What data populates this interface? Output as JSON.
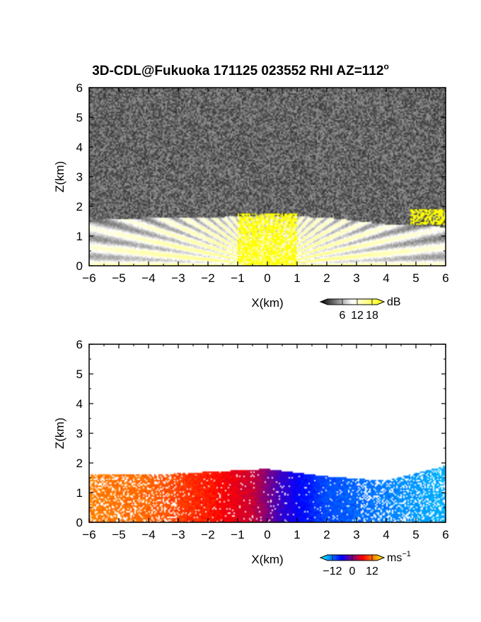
{
  "title": "3D-CDL@Fukuoka 171125 023552 RHI AZ=112",
  "title_superscript": "o",
  "chart_data": [
    {
      "type": "heatmap",
      "name_of_panel": "reflectivity",
      "xlabel": "X(km)",
      "ylabel": "Z(km)",
      "xlim": [
        -6,
        6
      ],
      "ylim": [
        0,
        6
      ],
      "x_ticks": [
        "-6",
        "-5",
        "-4",
        "-3",
        "-2",
        "-1",
        "0",
        "1",
        "2",
        "3",
        "4",
        "5",
        "6"
      ],
      "y_ticks": [
        "0",
        "1",
        "2",
        "3",
        "4",
        "5",
        "6"
      ],
      "colorbar": {
        "unit": "dB",
        "ticks": [
          "6",
          "12",
          "18"
        ],
        "range": [
          0,
          20
        ],
        "colors": [
          "#000000",
          "#ffffff",
          "#ffff00"
        ]
      },
      "noise_floor_top_km": 6,
      "boundary_layer_top_km": [
        [
          -6,
          1.55
        ],
        [
          -4,
          1.6
        ],
        [
          -2,
          1.62
        ],
        [
          0,
          1.7
        ],
        [
          2,
          1.62
        ],
        [
          4,
          1.4
        ],
        [
          6,
          1.3
        ]
      ],
      "strong_echo_regions": [
        {
          "x_range": [
            -1.0,
            1.0
          ],
          "z_range": [
            0,
            1.75
          ],
          "value_db": 20
        },
        {
          "x_range": [
            4.8,
            6.0
          ],
          "z_range": [
            1.4,
            1.9
          ],
          "value_db": 20
        }
      ]
    },
    {
      "type": "heatmap",
      "name_of_panel": "doppler_velocity",
      "xlabel": "X(km)",
      "ylabel": "Z(km)",
      "xlim": [
        -6,
        6
      ],
      "ylim": [
        0,
        6
      ],
      "x_ticks": [
        "-6",
        "-5",
        "-4",
        "-3",
        "-2",
        "-1",
        "0",
        "1",
        "2",
        "3",
        "4",
        "5",
        "6"
      ],
      "y_ticks": [
        "0",
        "1",
        "2",
        "3",
        "4",
        "5",
        "6"
      ],
      "colorbar": {
        "unit": "ms",
        "unit_superscript": "-1",
        "ticks": [
          "-12",
          "0",
          "12"
        ],
        "range": [
          -15,
          15
        ],
        "colors": [
          "#00ffff",
          "#0000ff",
          "#ff0000",
          "#ffff00"
        ]
      },
      "data_top_km": [
        [
          -6,
          1.6
        ],
        [
          -4,
          1.6
        ],
        [
          -2,
          1.7
        ],
        [
          0,
          1.8
        ],
        [
          2,
          1.55
        ],
        [
          4,
          1.4
        ],
        [
          6,
          1.9
        ]
      ],
      "velocity_profile_ms": [
        [
          -6,
          10
        ],
        [
          -4,
          9
        ],
        [
          -2,
          6
        ],
        [
          -0.5,
          3
        ],
        [
          0,
          0
        ],
        [
          0.5,
          -3
        ],
        [
          2,
          -8
        ],
        [
          4,
          -10
        ],
        [
          6,
          -12
        ]
      ]
    }
  ]
}
